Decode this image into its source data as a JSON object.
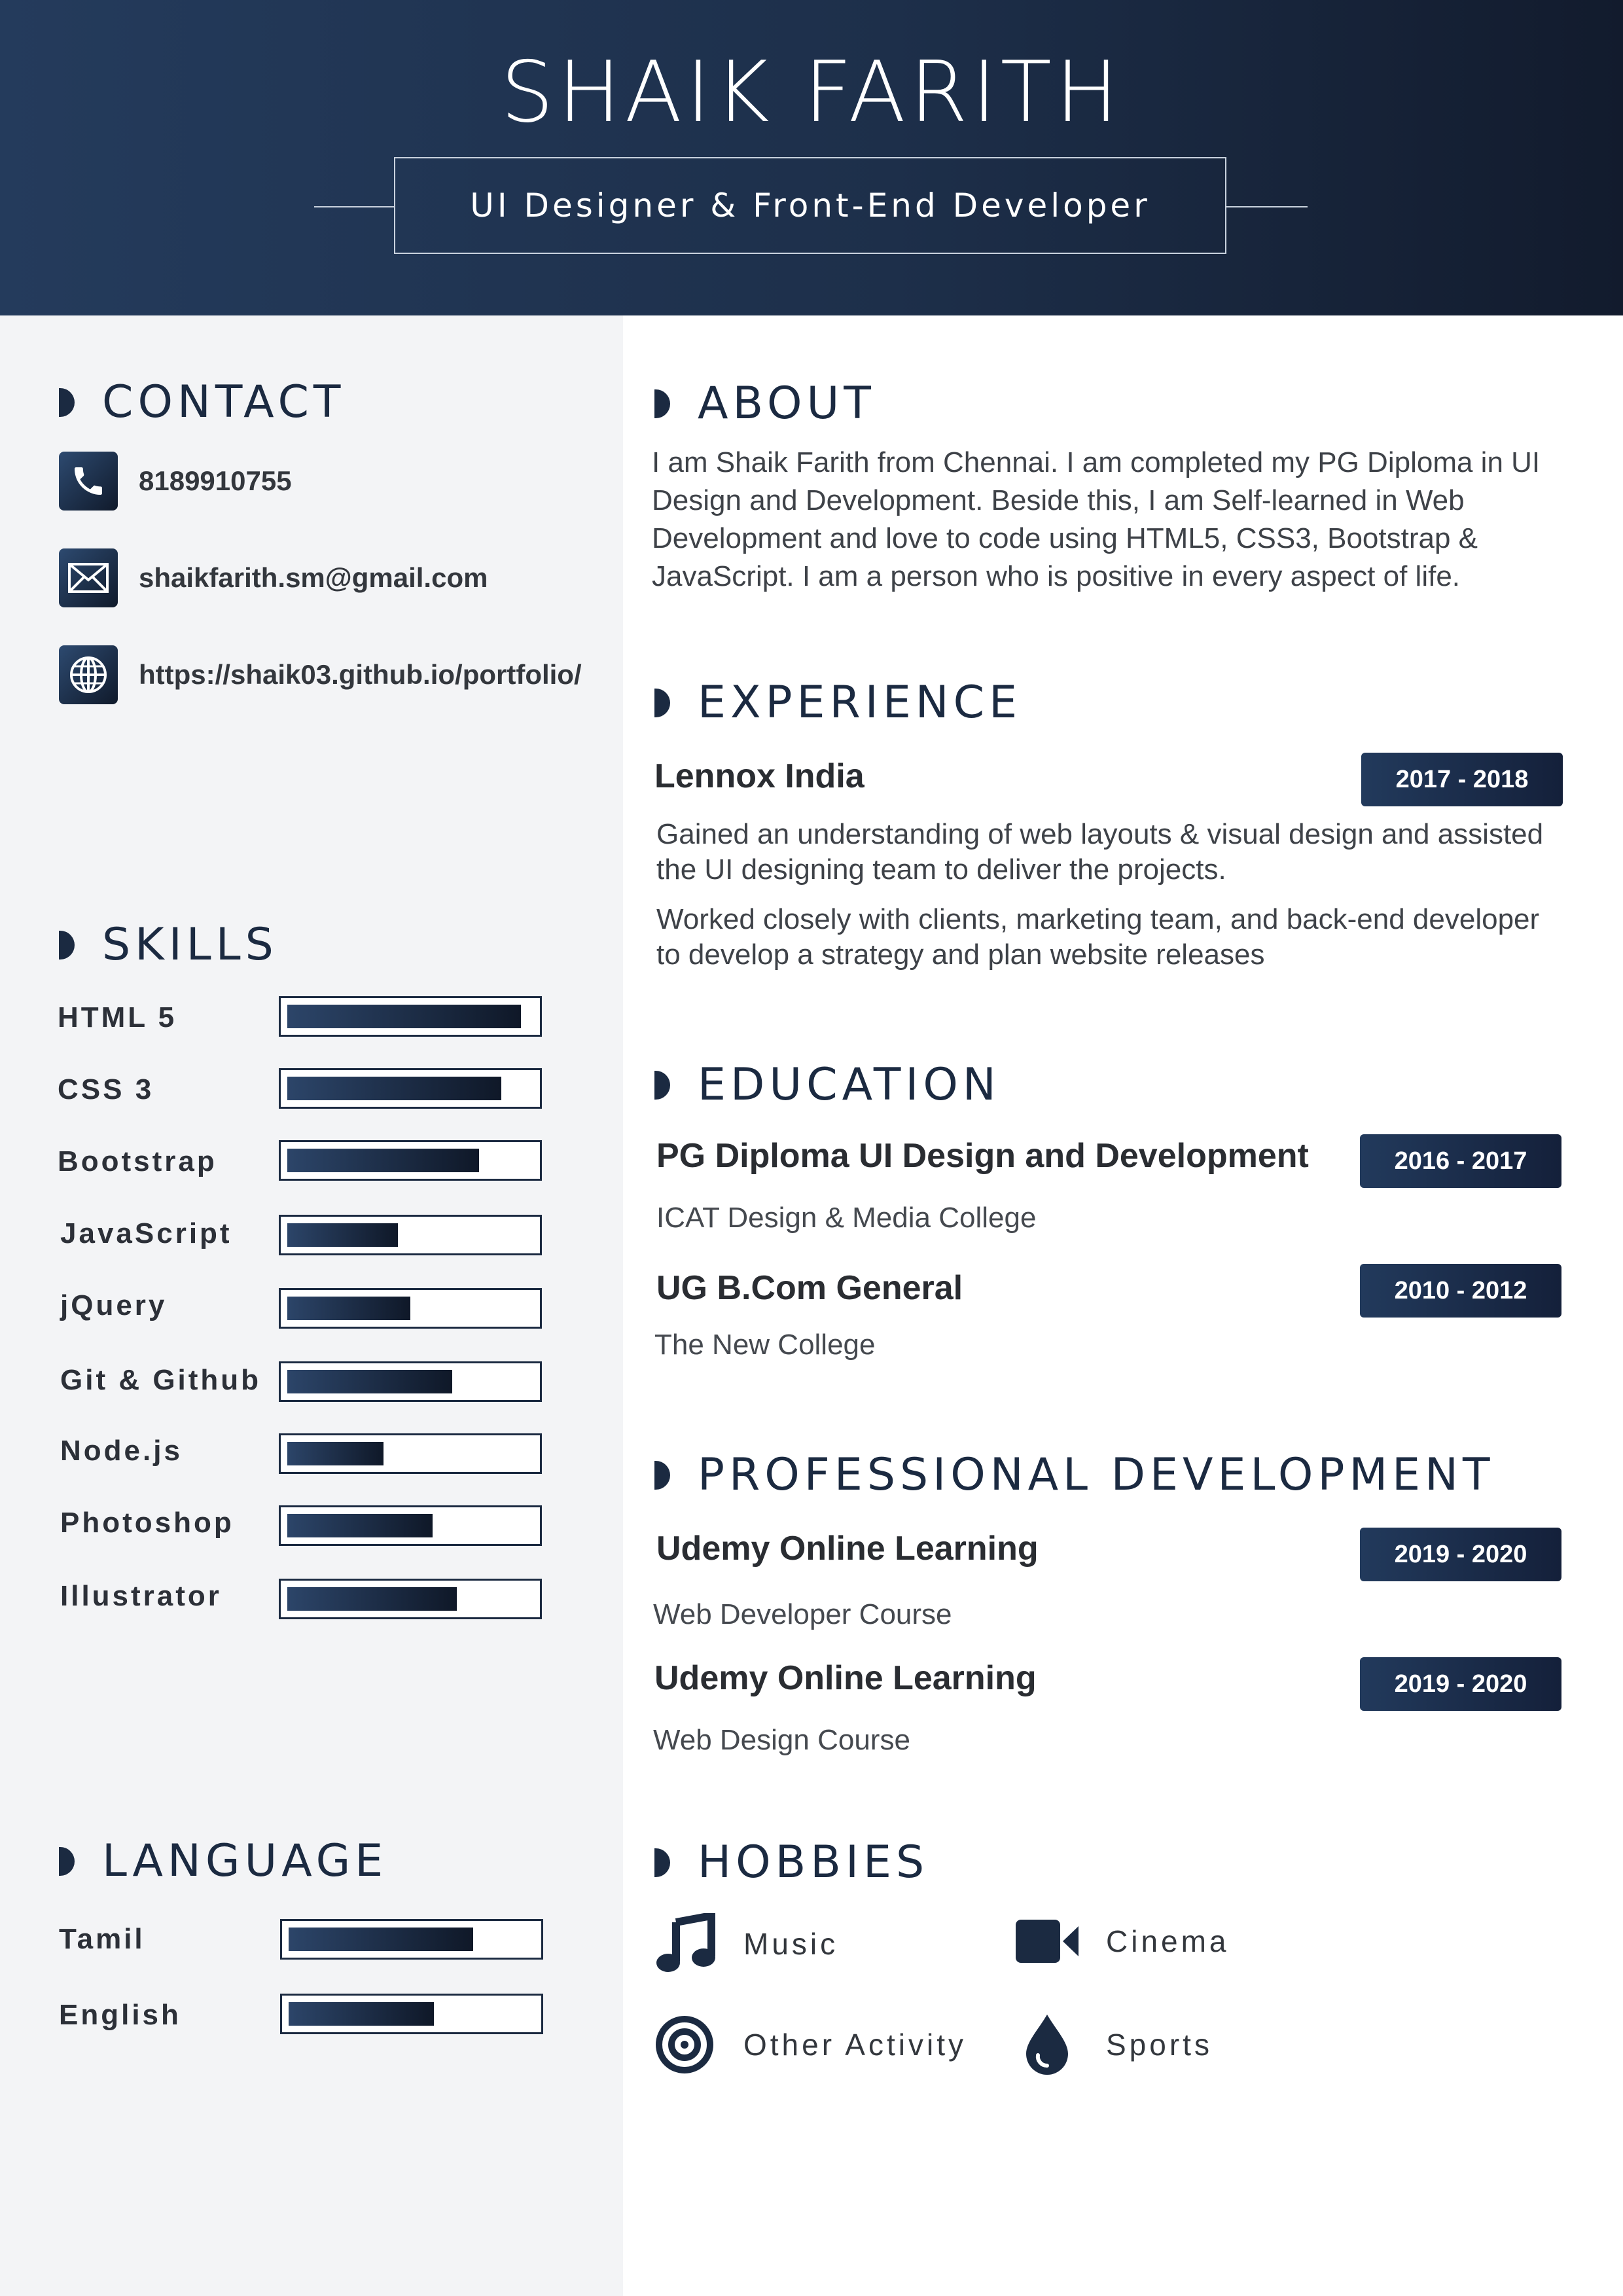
{
  "header": {
    "name": "SHAIK FARITH",
    "title": "UI Designer & Front-End Developer"
  },
  "contact": {
    "heading": "CONTACT",
    "phone": "8189910755",
    "email": "shaikfarith.sm@gmail.com",
    "website": "https://shaik03.github.io/portfolio/"
  },
  "skills": {
    "heading": "SKILLS",
    "items": [
      {
        "label": "HTML 5",
        "level": 0.95
      },
      {
        "label": "CSS 3",
        "level": 0.87
      },
      {
        "label": "Bootstrap",
        "level": 0.78
      },
      {
        "label": "JavaScript",
        "level": 0.45
      },
      {
        "label": "jQuery",
        "level": 0.5
      },
      {
        "label": "Git & Github",
        "level": 0.67
      },
      {
        "label": "Node.js",
        "level": 0.39
      },
      {
        "label": "Photoshop",
        "level": 0.59
      },
      {
        "label": "Illustrator",
        "level": 0.69
      }
    ]
  },
  "language": {
    "heading": "LANGUAGE",
    "items": [
      {
        "label": "Tamil",
        "level": 0.75
      },
      {
        "label": "English",
        "level": 0.59
      }
    ]
  },
  "about": {
    "heading": "ABOUT",
    "lines": [
      "I am Shaik Farith from Chennai. I am completed my PG Diploma in UI",
      "Design and Development. Beside this, I am Self-learned in Web",
      "Development and love to code using HTML5, CSS3, Bootstrap &",
      "JavaScript. I am a person who is positive in every aspect of life."
    ]
  },
  "experience": {
    "heading": "EXPERIENCE",
    "company": "Lennox India",
    "period": "2017 - 2018",
    "para1": [
      "Gained an understanding of web layouts  & visual design and assisted",
      "the UI designing team to deliver the projects."
    ],
    "para2": [
      "Worked closely with clients, marketing team, and back-end developer",
      "to develop a strategy and plan website releases"
    ]
  },
  "education": {
    "heading": "EDUCATION",
    "items": [
      {
        "title": "PG Diploma UI Design and Development",
        "school": "ICAT Design & Media College",
        "period": "2016 - 2017"
      },
      {
        "title": "UG B.Com General",
        "school": "The New College",
        "period": "2010 - 2012"
      }
    ]
  },
  "professional": {
    "heading": "PROFESSIONAL DEVELOPMENT",
    "items": [
      {
        "title": "Udemy Online Learning",
        "course": "Web Developer Course",
        "period": "2019 - 2020"
      },
      {
        "title": "Udemy Online Learning",
        "course": "Web Design Course",
        "period": "2019 - 2020"
      }
    ]
  },
  "hobbies": {
    "heading": "HOBBIES",
    "items": [
      {
        "label": "Music",
        "icon": "music-note-icon"
      },
      {
        "label": "Cinema",
        "icon": "video-camera-icon"
      },
      {
        "label": "Other Activity",
        "icon": "target-icon"
      },
      {
        "label": "Sports",
        "icon": "water-drop-icon"
      }
    ]
  },
  "colors": {
    "navy": "#1b2a41",
    "sidebar_bg": "#f3f4f6"
  }
}
